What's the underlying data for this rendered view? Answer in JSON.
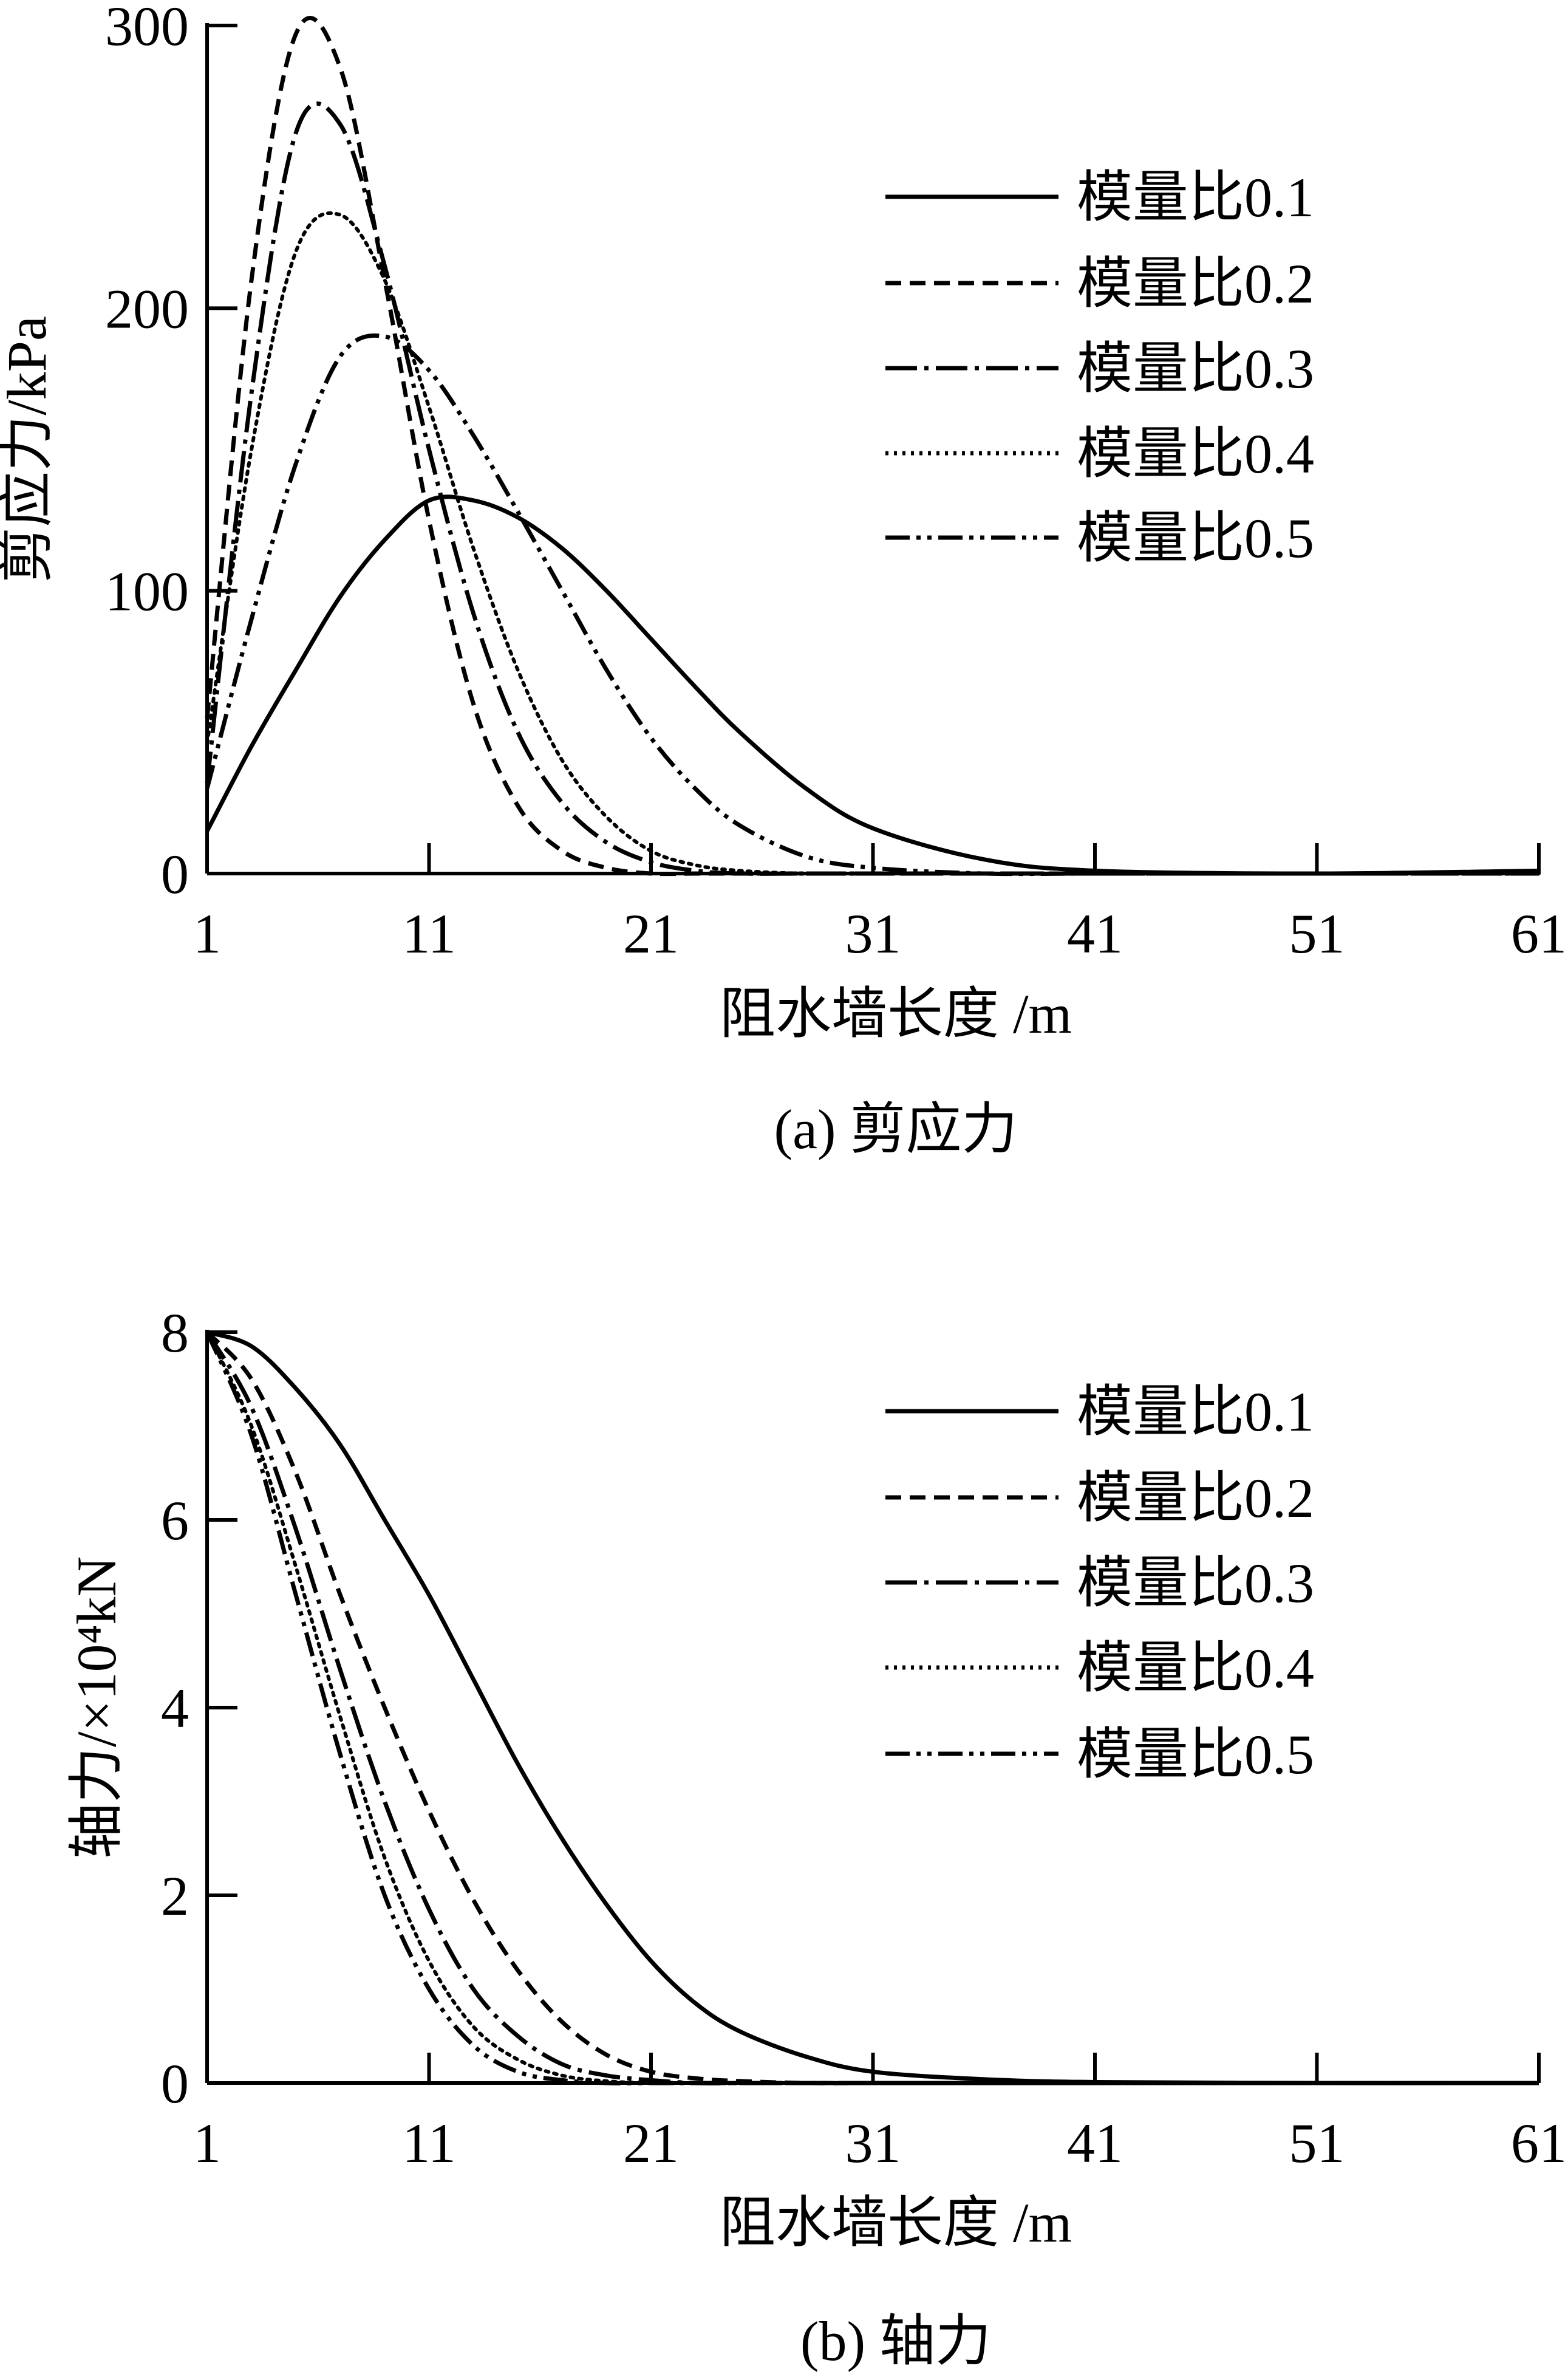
{
  "chart_data": [
    {
      "type": "line",
      "caption": "(a)  剪应力",
      "xlabel": "阻水墙长度 /m",
      "ylabel": "剪应力/kPa",
      "xlim": [
        1,
        61
      ],
      "ylim": [
        0,
        300
      ],
      "xticks": [
        "1",
        "11",
        "21",
        "31",
        "41",
        "51",
        "61"
      ],
      "yticks": [
        "0",
        "100",
        "200",
        "300"
      ],
      "grid": false,
      "legend_position": "top-right",
      "x": [
        1,
        3,
        5,
        7,
        9,
        11,
        13,
        15,
        17,
        19,
        21,
        23,
        25,
        28,
        31,
        36,
        41,
        51,
        61
      ],
      "series": [
        {
          "name": "模量比0.1",
          "style": "solid",
          "values": [
            15,
            45,
            72,
            98,
            118,
            132,
            132,
            126,
            115,
            100,
            83,
            66,
            50,
            30,
            16,
            5,
            1,
            0,
            1
          ]
        },
        {
          "name": "模量比0.2",
          "style": "dashed",
          "values": [
            55,
            210,
            297,
            285,
            210,
            125,
            60,
            24,
            8,
            2,
            0,
            0,
            0,
            0,
            0,
            0,
            0,
            0,
            0
          ]
        },
        {
          "name": "模量比0.3",
          "style": "dash-dot",
          "values": [
            32,
            170,
            262,
            265,
            215,
            150,
            92,
            50,
            25,
            11,
            4,
            1,
            0,
            0,
            0,
            0,
            0,
            0,
            0
          ]
        },
        {
          "name": "模量比0.4",
          "style": "dotted",
          "values": [
            46,
            150,
            220,
            233,
            210,
            165,
            115,
            72,
            40,
            20,
            8,
            3,
            1,
            0,
            0,
            0,
            0,
            0,
            0
          ]
        },
        {
          "name": "模量比0.5",
          "style": "dash-dot-dot",
          "values": [
            30,
            90,
            145,
            183,
            190,
            178,
            155,
            128,
            100,
            72,
            48,
            30,
            17,
            6,
            2,
            0,
            0,
            0,
            0
          ]
        }
      ]
    },
    {
      "type": "line",
      "caption": "(b)  轴力",
      "xlabel": "阻水墙长度 /m",
      "ylabel": "轴力/×10⁴kN",
      "xlim": [
        1,
        61
      ],
      "ylim": [
        0,
        8
      ],
      "xticks": [
        "1",
        "11",
        "21",
        "31",
        "41",
        "51",
        "61"
      ],
      "yticks": [
        "0",
        "2",
        "4",
        "6",
        "8"
      ],
      "grid": false,
      "legend_position": "top-right",
      "x": [
        1,
        3,
        5,
        7,
        9,
        11,
        13,
        15,
        17,
        19,
        21,
        23,
        25,
        28,
        31,
        36,
        41,
        51,
        61
      ],
      "series": [
        {
          "name": "模量比0.1",
          "style": "solid",
          "values": [
            8,
            7.85,
            7.4,
            6.8,
            6.0,
            5.2,
            4.3,
            3.4,
            2.6,
            1.9,
            1.3,
            0.85,
            0.55,
            0.28,
            0.12,
            0.04,
            0.01,
            0,
            0
          ]
        },
        {
          "name": "模量比0.2",
          "style": "dashed",
          "values": [
            8,
            7.5,
            6.5,
            5.2,
            4.0,
            2.9,
            1.95,
            1.2,
            0.65,
            0.3,
            0.12,
            0.05,
            0.02,
            0,
            0,
            0,
            0,
            0,
            0
          ]
        },
        {
          "name": "模量比0.3",
          "style": "dash-dot",
          "values": [
            8,
            7.2,
            5.9,
            4.4,
            3.0,
            1.85,
            1.0,
            0.5,
            0.2,
            0.08,
            0.03,
            0,
            0,
            0,
            0,
            0,
            0,
            0,
            0
          ]
        },
        {
          "name": "模量比0.4",
          "style": "dotted",
          "values": [
            8,
            7.0,
            5.5,
            3.9,
            2.4,
            1.3,
            0.6,
            0.25,
            0.08,
            0.02,
            0,
            0,
            0,
            0,
            0,
            0,
            0,
            0,
            0
          ]
        },
        {
          "name": "模量比0.5",
          "style": "dash-dot-dot",
          "values": [
            8,
            6.9,
            5.2,
            3.5,
            2.0,
            1.0,
            0.4,
            0.12,
            0.03,
            0,
            0,
            0,
            0,
            0,
            0,
            0,
            0,
            0,
            0
          ]
        }
      ]
    }
  ]
}
